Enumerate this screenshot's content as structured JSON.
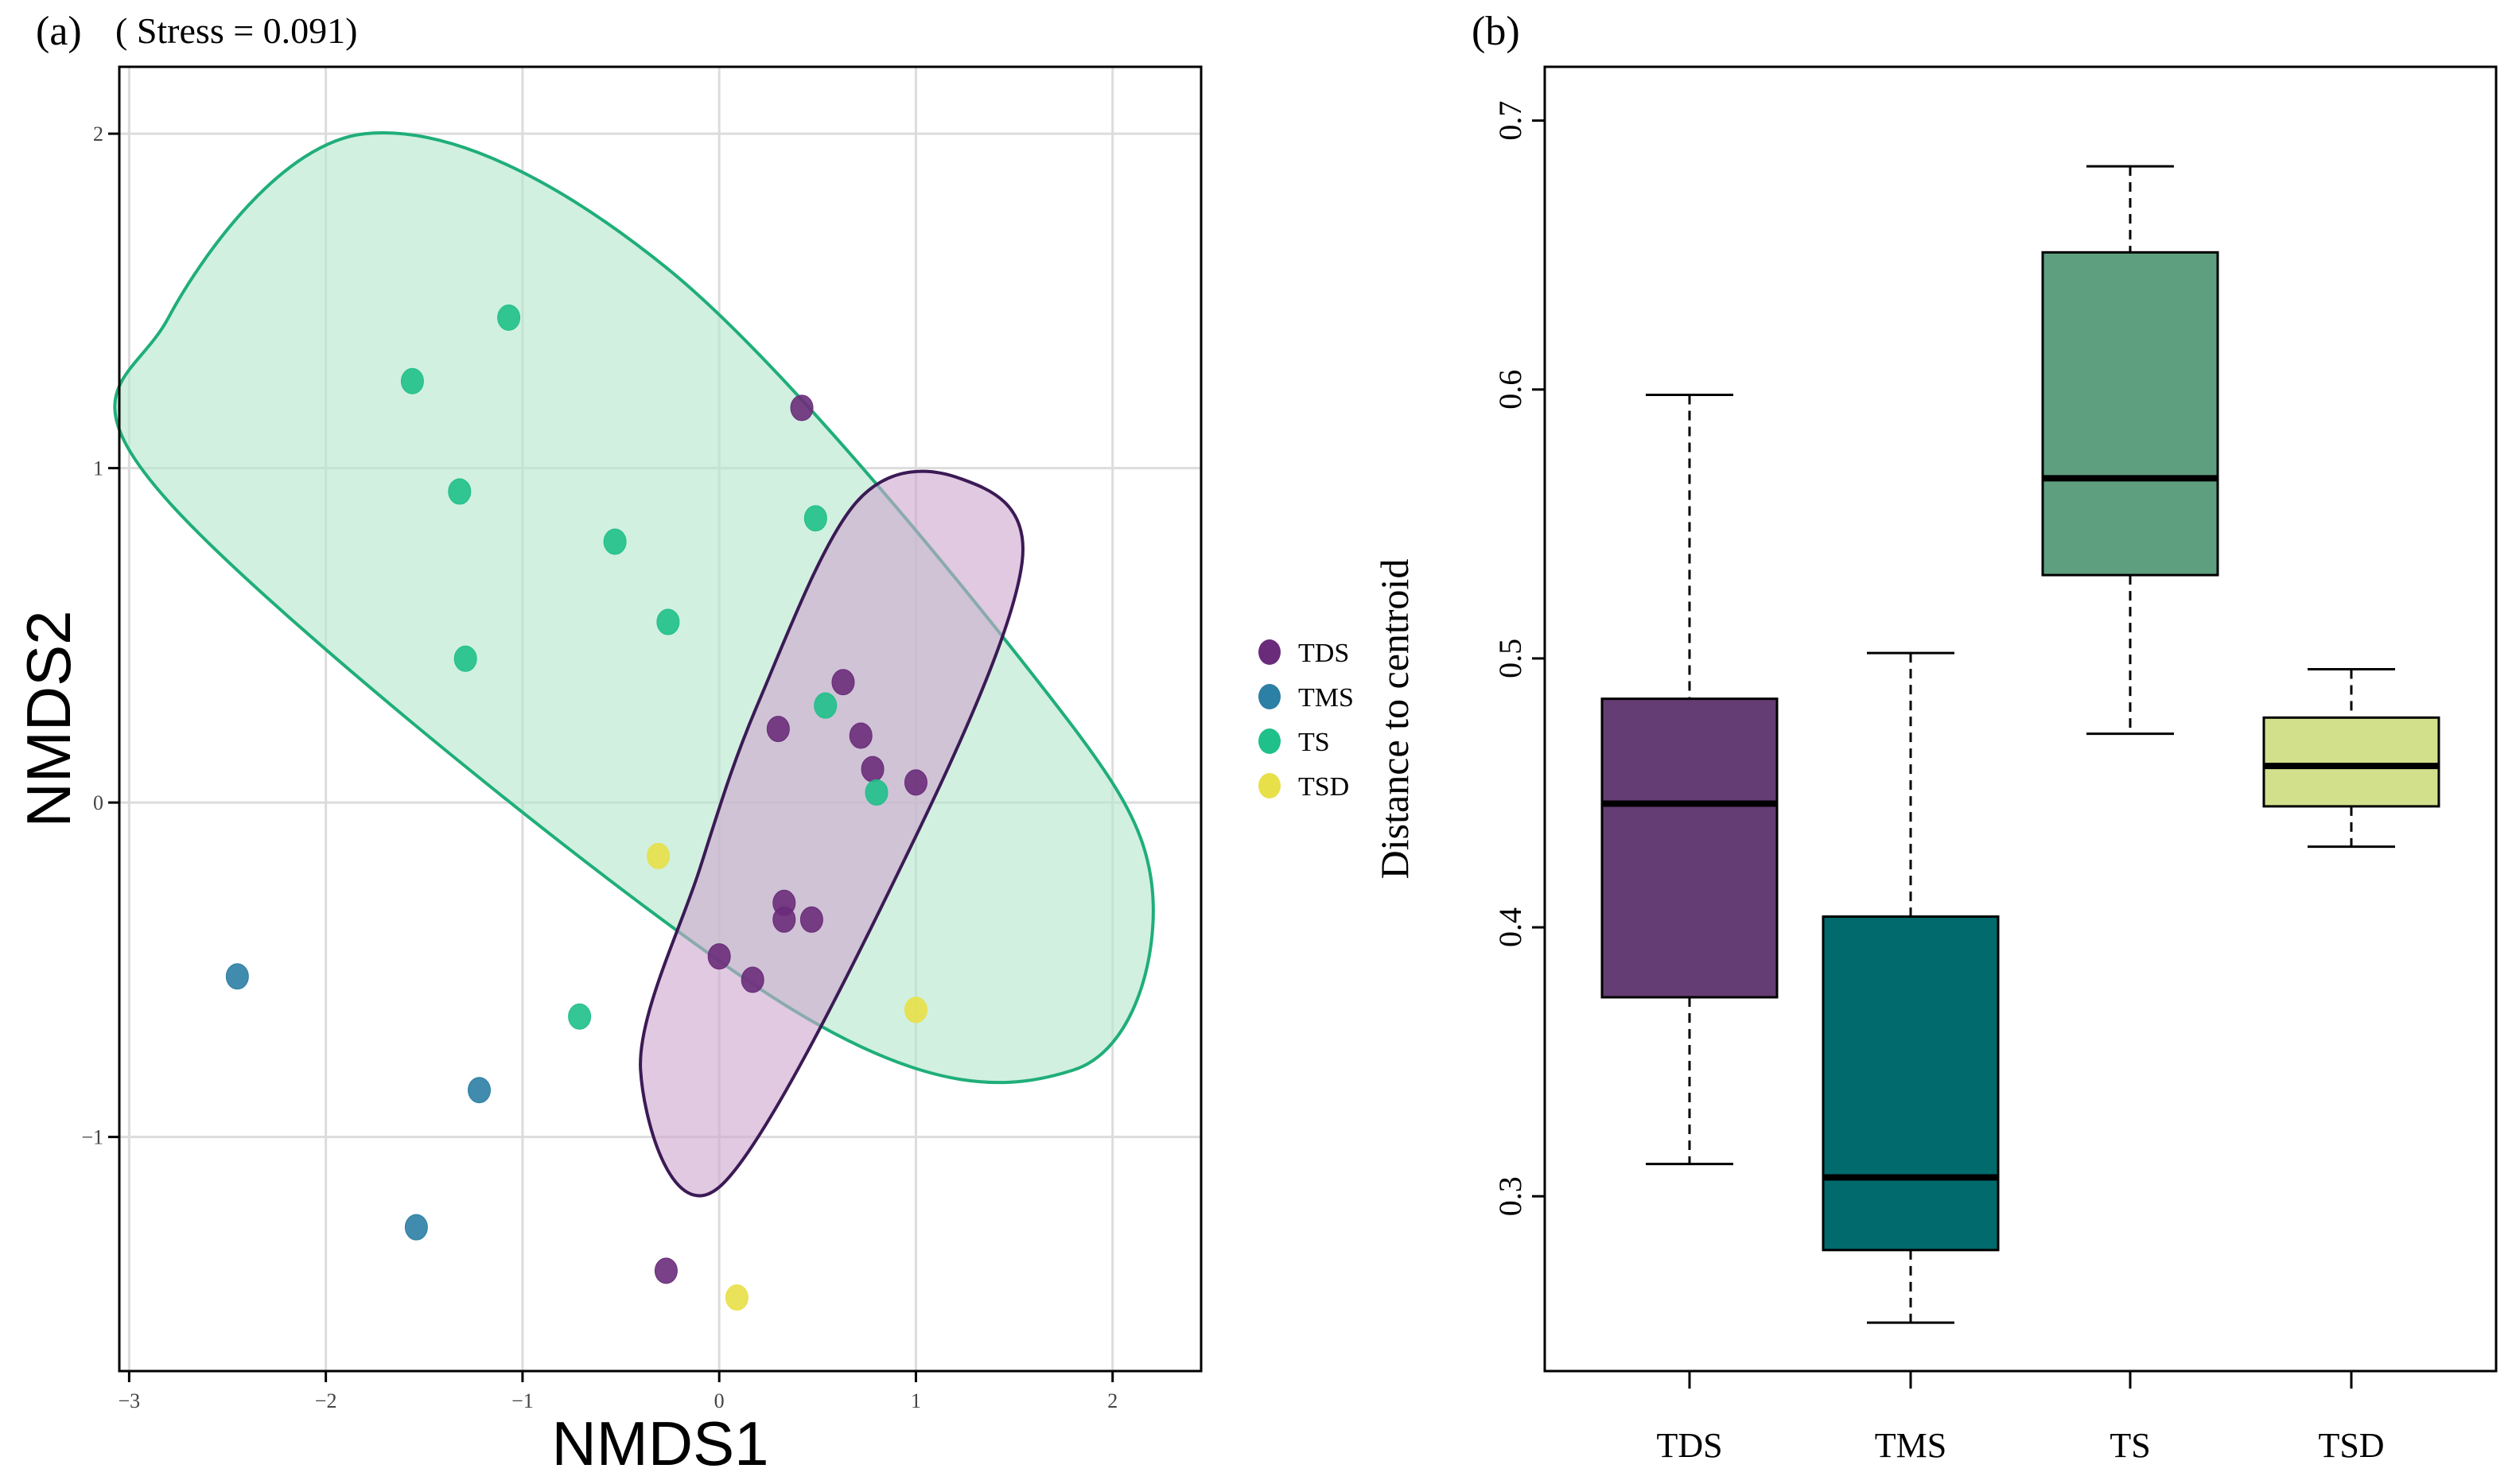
{
  "figure": {
    "panel_a_tag": "(a)",
    "panel_a_stress": "( Stress = 0.091)",
    "panel_b_tag": "(b)"
  },
  "chart_data": [
    {
      "type": "scatter",
      "title": "( Stress = 0.091)",
      "xlabel": "NMDS1",
      "ylabel": "NMDS2",
      "xlim": [
        -3.05,
        2.45
      ],
      "ylim": [
        -1.7,
        2.2
      ],
      "xticks": [
        -3,
        -2,
        -1,
        0,
        1,
        2
      ],
      "xtick_labels": [
        "−3",
        "−2",
        "−1",
        "0",
        "1",
        "2"
      ],
      "yticks": [
        -1,
        0,
        1,
        2
      ],
      "ytick_labels": [
        "−1",
        "0",
        "1",
        "2"
      ],
      "grid": true,
      "legend_position": "right",
      "series": [
        {
          "name": "TDS",
          "color": "#6a2c7a",
          "x": [
            0.42,
            0.63,
            0.3,
            0.72,
            0.78,
            1.0,
            0.33,
            0.33,
            0.47,
            0.0,
            0.17,
            -0.27
          ],
          "y": [
            1.18,
            0.36,
            0.22,
            0.2,
            0.1,
            0.06,
            -0.3,
            -0.35,
            -0.35,
            -0.46,
            -0.53,
            -1.4
          ]
        },
        {
          "name": "TMS",
          "color": "#2c7fa5",
          "x": [
            -2.45,
            -1.22,
            -1.54
          ],
          "y": [
            -0.52,
            -0.86,
            -1.27
          ]
        },
        {
          "name": "TS",
          "color": "#1fc08a",
          "x": [
            -1.07,
            -1.56,
            -1.32,
            -0.53,
            -1.29,
            -0.26,
            0.49,
            0.54,
            0.8,
            -0.71
          ],
          "y": [
            1.45,
            1.26,
            0.93,
            0.78,
            0.43,
            0.54,
            0.85,
            0.29,
            0.03,
            -0.64
          ]
        },
        {
          "name": "TSD",
          "color": "#e8e048",
          "x": [
            -0.31,
            1.0,
            0.09
          ],
          "y": [
            -0.16,
            -0.62,
            -1.48
          ]
        }
      ],
      "ellipses": [
        {
          "group": "TS",
          "edge_color": "#1fae7a",
          "fill_color": "#b4e6cc",
          "outline_x": [
            -1.8,
            -0.27,
            1.57,
            2.2,
            1.8,
            0.32,
            -2.8,
            -2.8
          ],
          "outline_y": [
            2.0,
            1.6,
            0.4,
            -0.25,
            -0.8,
            -0.6,
            0.9,
            1.45
          ]
        },
        {
          "group": "TDS",
          "edge_color": "#3b1a55",
          "fill_color": "#cda8cf",
          "outline_x": [
            1.22,
            1.54,
            1.0,
            0.0,
            -0.4,
            -0.1,
            0.2,
            0.7
          ],
          "outline_y": [
            0.97,
            0.72,
            -0.1,
            -1.15,
            -0.8,
            -0.2,
            0.3,
            0.9
          ]
        }
      ]
    },
    {
      "type": "box",
      "title": "",
      "xlabel": "",
      "ylabel": "Distance to centroid",
      "categories": [
        "TDS",
        "TMS",
        "TS",
        "TSD"
      ],
      "ylim": [
        0.235,
        0.72
      ],
      "yticks": [
        0.3,
        0.4,
        0.5,
        0.6,
        0.7
      ],
      "ytick_labels": [
        "0.3",
        "0.4",
        "0.5",
        "0.6",
        "0.7"
      ],
      "grid": false,
      "boxes": [
        {
          "name": "TDS",
          "color": "#643d74",
          "whisker_low": 0.312,
          "q1": 0.374,
          "median": 0.446,
          "q3": 0.485,
          "whisker_high": 0.598
        },
        {
          "name": "TMS",
          "color": "#006a6c",
          "whisker_low": 0.253,
          "q1": 0.28,
          "median": 0.307,
          "q3": 0.404,
          "whisker_high": 0.502
        },
        {
          "name": "TS",
          "color": "#5e9f80",
          "whisker_low": 0.472,
          "q1": 0.531,
          "median": 0.567,
          "q3": 0.651,
          "whisker_high": 0.683
        },
        {
          "name": "TSD",
          "color": "#d2e08c",
          "whisker_low": 0.43,
          "q1": 0.445,
          "median": 0.46,
          "q3": 0.478,
          "whisker_high": 0.496
        }
      ]
    }
  ]
}
